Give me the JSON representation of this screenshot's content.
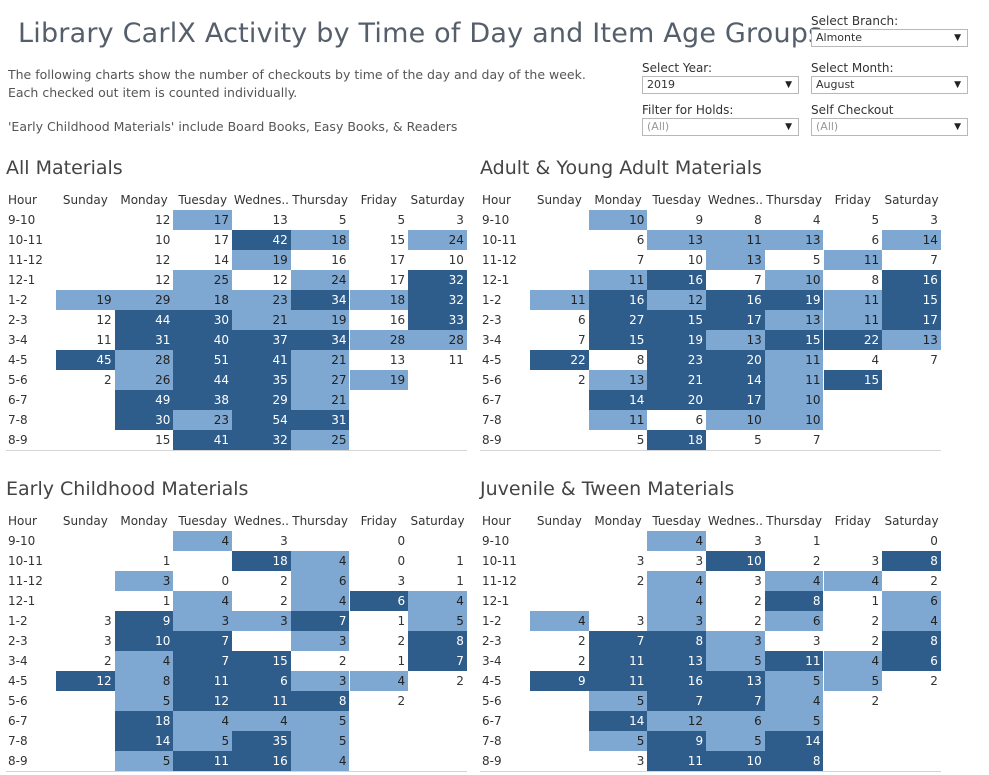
{
  "title": "Library CarlX Activity by Time of Day and Item Age Groups",
  "description": {
    "line1": "The following charts show the number of checkouts by time of the day and day of the week.",
    "line2": "Each checked out item is counted individually.",
    "line3": "'Early Childhood Materials' include Board Books, Easy Books, & Readers"
  },
  "filters": {
    "branch": {
      "label": "Select Branch:",
      "value": "Almonte"
    },
    "year": {
      "label": "Select Year:",
      "value": "2019"
    },
    "month": {
      "label": "Select Month:",
      "value": "August"
    },
    "holds": {
      "label": "Filter for Holds:",
      "value": "(All)"
    },
    "self_checkout": {
      "label": "Self Checkout",
      "value": "(All)"
    }
  },
  "colors": {
    "light": "#7ea8d2",
    "dark": "#2e5d8c"
  },
  "charts": [
    {
      "title": "All Materials",
      "columns": [
        "Hour",
        "Sunday",
        "Monday",
        "Tuesday",
        "Wednes..",
        "Thursday",
        "Friday",
        "Saturday"
      ],
      "rows": [
        {
          "hour": "9-10",
          "values": [
            "",
            "12",
            "17",
            "13",
            "5",
            "5",
            "3"
          ]
        },
        {
          "hour": "10-11",
          "values": [
            "",
            "10",
            "17",
            "42",
            "18",
            "15",
            "24"
          ]
        },
        {
          "hour": "11-12",
          "values": [
            "",
            "12",
            "14",
            "19",
            "16",
            "17",
            "10"
          ]
        },
        {
          "hour": "12-1",
          "values": [
            "",
            "12",
            "25",
            "12",
            "24",
            "17",
            "32"
          ]
        },
        {
          "hour": "1-2",
          "values": [
            "19",
            "29",
            "18",
            "23",
            "34",
            "18",
            "32"
          ]
        },
        {
          "hour": "2-3",
          "values": [
            "12",
            "44",
            "30",
            "21",
            "19",
            "16",
            "33"
          ]
        },
        {
          "hour": "3-4",
          "values": [
            "11",
            "31",
            "40",
            "37",
            "34",
            "28",
            "28"
          ]
        },
        {
          "hour": "4-5",
          "values": [
            "45",
            "28",
            "51",
            "41",
            "21",
            "13",
            "11"
          ]
        },
        {
          "hour": "5-6",
          "values": [
            "2",
            "26",
            "44",
            "35",
            "27",
            "19",
            ""
          ]
        },
        {
          "hour": "6-7",
          "values": [
            "",
            "49",
            "38",
            "29",
            "21",
            "",
            ""
          ]
        },
        {
          "hour": "7-8",
          "values": [
            "",
            "30",
            "23",
            "54",
            "31",
            "",
            ""
          ]
        },
        {
          "hour": "8-9",
          "values": [
            "",
            "15",
            "41",
            "32",
            "25",
            "",
            ""
          ]
        }
      ],
      "levels": [
        [
          0,
          0,
          1,
          0,
          0,
          0,
          0
        ],
        [
          0,
          0,
          0,
          2,
          1,
          0,
          1
        ],
        [
          0,
          0,
          0,
          1,
          0,
          0,
          0
        ],
        [
          0,
          0,
          1,
          0,
          1,
          0,
          2
        ],
        [
          1,
          1,
          1,
          1,
          2,
          1,
          2
        ],
        [
          0,
          2,
          2,
          1,
          1,
          0,
          2
        ],
        [
          0,
          2,
          2,
          2,
          2,
          1,
          1
        ],
        [
          2,
          1,
          2,
          2,
          1,
          0,
          0
        ],
        [
          0,
          1,
          2,
          2,
          1,
          1,
          0
        ],
        [
          0,
          2,
          2,
          2,
          1,
          0,
          0
        ],
        [
          0,
          2,
          1,
          2,
          2,
          0,
          0
        ],
        [
          0,
          0,
          2,
          2,
          1,
          0,
          0
        ]
      ]
    },
    {
      "title": "Adult & Young Adult Materials",
      "columns": [
        "Hour",
        "Sunday",
        "Monday",
        "Tuesday",
        "Wednes..",
        "Thursday",
        "Friday",
        "Saturday"
      ],
      "rows": [
        {
          "hour": "9-10",
          "values": [
            "",
            "10",
            "9",
            "8",
            "4",
            "5",
            "3"
          ]
        },
        {
          "hour": "10-11",
          "values": [
            "",
            "6",
            "13",
            "11",
            "13",
            "6",
            "14"
          ]
        },
        {
          "hour": "11-12",
          "values": [
            "",
            "7",
            "10",
            "13",
            "5",
            "11",
            "7"
          ]
        },
        {
          "hour": "12-1",
          "values": [
            "",
            "11",
            "16",
            "7",
            "10",
            "8",
            "16"
          ]
        },
        {
          "hour": "1-2",
          "values": [
            "11",
            "16",
            "12",
            "16",
            "19",
            "11",
            "15"
          ]
        },
        {
          "hour": "2-3",
          "values": [
            "6",
            "27",
            "15",
            "17",
            "13",
            "11",
            "17"
          ]
        },
        {
          "hour": "3-4",
          "values": [
            "7",
            "15",
            "19",
            "13",
            "15",
            "22",
            "13"
          ]
        },
        {
          "hour": "4-5",
          "values": [
            "22",
            "8",
            "23",
            "20",
            "11",
            "4",
            "7"
          ]
        },
        {
          "hour": "5-6",
          "values": [
            "2",
            "13",
            "21",
            "14",
            "11",
            "15",
            ""
          ]
        },
        {
          "hour": "6-7",
          "values": [
            "",
            "14",
            "20",
            "17",
            "10",
            "",
            ""
          ]
        },
        {
          "hour": "7-8",
          "values": [
            "",
            "11",
            "6",
            "10",
            "10",
            "",
            ""
          ]
        },
        {
          "hour": "8-9",
          "values": [
            "",
            "5",
            "18",
            "5",
            "7",
            "",
            ""
          ]
        }
      ],
      "levels": [
        [
          0,
          1,
          0,
          0,
          0,
          0,
          0
        ],
        [
          0,
          0,
          1,
          1,
          1,
          0,
          1
        ],
        [
          0,
          0,
          0,
          1,
          0,
          1,
          0
        ],
        [
          0,
          1,
          2,
          0,
          1,
          0,
          2
        ],
        [
          1,
          2,
          1,
          2,
          2,
          1,
          2
        ],
        [
          0,
          2,
          2,
          2,
          1,
          1,
          2
        ],
        [
          0,
          2,
          2,
          1,
          2,
          2,
          1
        ],
        [
          2,
          0,
          2,
          2,
          1,
          0,
          0
        ],
        [
          0,
          1,
          2,
          2,
          1,
          2,
          0
        ],
        [
          0,
          2,
          2,
          2,
          1,
          0,
          0
        ],
        [
          0,
          1,
          0,
          1,
          1,
          0,
          0
        ],
        [
          0,
          0,
          2,
          0,
          0,
          0,
          0
        ]
      ]
    },
    {
      "title": "Early Childhood Materials",
      "columns": [
        "Hour",
        "Sunday",
        "Monday",
        "Tuesday",
        "Wednes..",
        "Thursday",
        "Friday",
        "Saturday"
      ],
      "rows": [
        {
          "hour": "9-10",
          "values": [
            "",
            "",
            "4",
            "3",
            "",
            "0",
            ""
          ]
        },
        {
          "hour": "10-11",
          "values": [
            "",
            "1",
            "",
            "18",
            "4",
            "0",
            "1"
          ]
        },
        {
          "hour": "11-12",
          "values": [
            "",
            "3",
            "0",
            "2",
            "6",
            "3",
            "1"
          ]
        },
        {
          "hour": "12-1",
          "values": [
            "",
            "1",
            "4",
            "2",
            "4",
            "6",
            "4"
          ]
        },
        {
          "hour": "1-2",
          "values": [
            "3",
            "9",
            "3",
            "3",
            "7",
            "1",
            "5"
          ]
        },
        {
          "hour": "2-3",
          "values": [
            "3",
            "10",
            "7",
            "",
            "3",
            "2",
            "8"
          ]
        },
        {
          "hour": "3-4",
          "values": [
            "2",
            "4",
            "7",
            "15",
            "2",
            "1",
            "7"
          ]
        },
        {
          "hour": "4-5",
          "values": [
            "12",
            "8",
            "11",
            "6",
            "3",
            "4",
            "2"
          ]
        },
        {
          "hour": "5-6",
          "values": [
            "",
            "5",
            "12",
            "11",
            "8",
            "2",
            ""
          ]
        },
        {
          "hour": "6-7",
          "values": [
            "",
            "18",
            "4",
            "4",
            "5",
            "",
            ""
          ]
        },
        {
          "hour": "7-8",
          "values": [
            "",
            "14",
            "5",
            "35",
            "5",
            "",
            ""
          ]
        },
        {
          "hour": "8-9",
          "values": [
            "",
            "5",
            "11",
            "16",
            "4",
            "",
            ""
          ]
        }
      ],
      "levels": [
        [
          0,
          0,
          1,
          0,
          0,
          0,
          0
        ],
        [
          0,
          0,
          0,
          2,
          1,
          0,
          0
        ],
        [
          0,
          1,
          0,
          0,
          1,
          0,
          0
        ],
        [
          0,
          0,
          1,
          0,
          1,
          2,
          1
        ],
        [
          0,
          2,
          1,
          1,
          2,
          0,
          1
        ],
        [
          0,
          2,
          2,
          0,
          1,
          0,
          2
        ],
        [
          0,
          1,
          2,
          2,
          0,
          0,
          2
        ],
        [
          2,
          1,
          2,
          2,
          1,
          1,
          0
        ],
        [
          0,
          1,
          2,
          2,
          2,
          0,
          0
        ],
        [
          0,
          2,
          1,
          1,
          1,
          0,
          0
        ],
        [
          0,
          2,
          1,
          2,
          1,
          0,
          0
        ],
        [
          0,
          1,
          2,
          2,
          1,
          0,
          0
        ]
      ]
    },
    {
      "title": "Juvenile & Tween Materials",
      "columns": [
        "Hour",
        "Sunday",
        "Monday",
        "Tuesday",
        "Wednes..",
        "Thursday",
        "Friday",
        "Saturday"
      ],
      "rows": [
        {
          "hour": "9-10",
          "values": [
            "",
            "",
            "4",
            "3",
            "1",
            "",
            "0"
          ]
        },
        {
          "hour": "10-11",
          "values": [
            "",
            "3",
            "3",
            "10",
            "2",
            "3",
            "8"
          ]
        },
        {
          "hour": "11-12",
          "values": [
            "",
            "2",
            "4",
            "3",
            "4",
            "4",
            "2"
          ]
        },
        {
          "hour": "12-1",
          "values": [
            "",
            "",
            "4",
            "2",
            "8",
            "1",
            "6"
          ]
        },
        {
          "hour": "1-2",
          "values": [
            "4",
            "3",
            "3",
            "2",
            "6",
            "2",
            "4"
          ]
        },
        {
          "hour": "2-3",
          "values": [
            "2",
            "7",
            "8",
            "3",
            "3",
            "2",
            "8"
          ]
        },
        {
          "hour": "3-4",
          "values": [
            "2",
            "11",
            "13",
            "5",
            "11",
            "4",
            "6"
          ]
        },
        {
          "hour": "4-5",
          "values": [
            "9",
            "11",
            "16",
            "13",
            "5",
            "5",
            "2"
          ]
        },
        {
          "hour": "5-6",
          "values": [
            "",
            "5",
            "7",
            "7",
            "4",
            "2",
            ""
          ]
        },
        {
          "hour": "6-7",
          "values": [
            "",
            "14",
            "12",
            "6",
            "5",
            "",
            ""
          ]
        },
        {
          "hour": "7-8",
          "values": [
            "",
            "5",
            "9",
            "5",
            "14",
            "",
            ""
          ]
        },
        {
          "hour": "8-9",
          "values": [
            "",
            "3",
            "11",
            "10",
            "8",
            "",
            ""
          ]
        }
      ],
      "levels": [
        [
          0,
          0,
          1,
          0,
          0,
          0,
          0
        ],
        [
          0,
          0,
          0,
          2,
          0,
          0,
          2
        ],
        [
          0,
          0,
          1,
          0,
          1,
          1,
          0
        ],
        [
          0,
          0,
          1,
          0,
          2,
          0,
          1
        ],
        [
          1,
          0,
          1,
          0,
          1,
          0,
          1
        ],
        [
          0,
          2,
          2,
          1,
          0,
          0,
          2
        ],
        [
          0,
          2,
          2,
          1,
          2,
          1,
          2
        ],
        [
          2,
          2,
          2,
          2,
          1,
          1,
          0
        ],
        [
          0,
          1,
          2,
          2,
          1,
          0,
          0
        ],
        [
          0,
          2,
          1,
          1,
          1,
          0,
          0
        ],
        [
          0,
          1,
          2,
          1,
          2,
          0,
          0
        ],
        [
          0,
          0,
          2,
          2,
          2,
          0,
          0
        ]
      ]
    }
  ]
}
